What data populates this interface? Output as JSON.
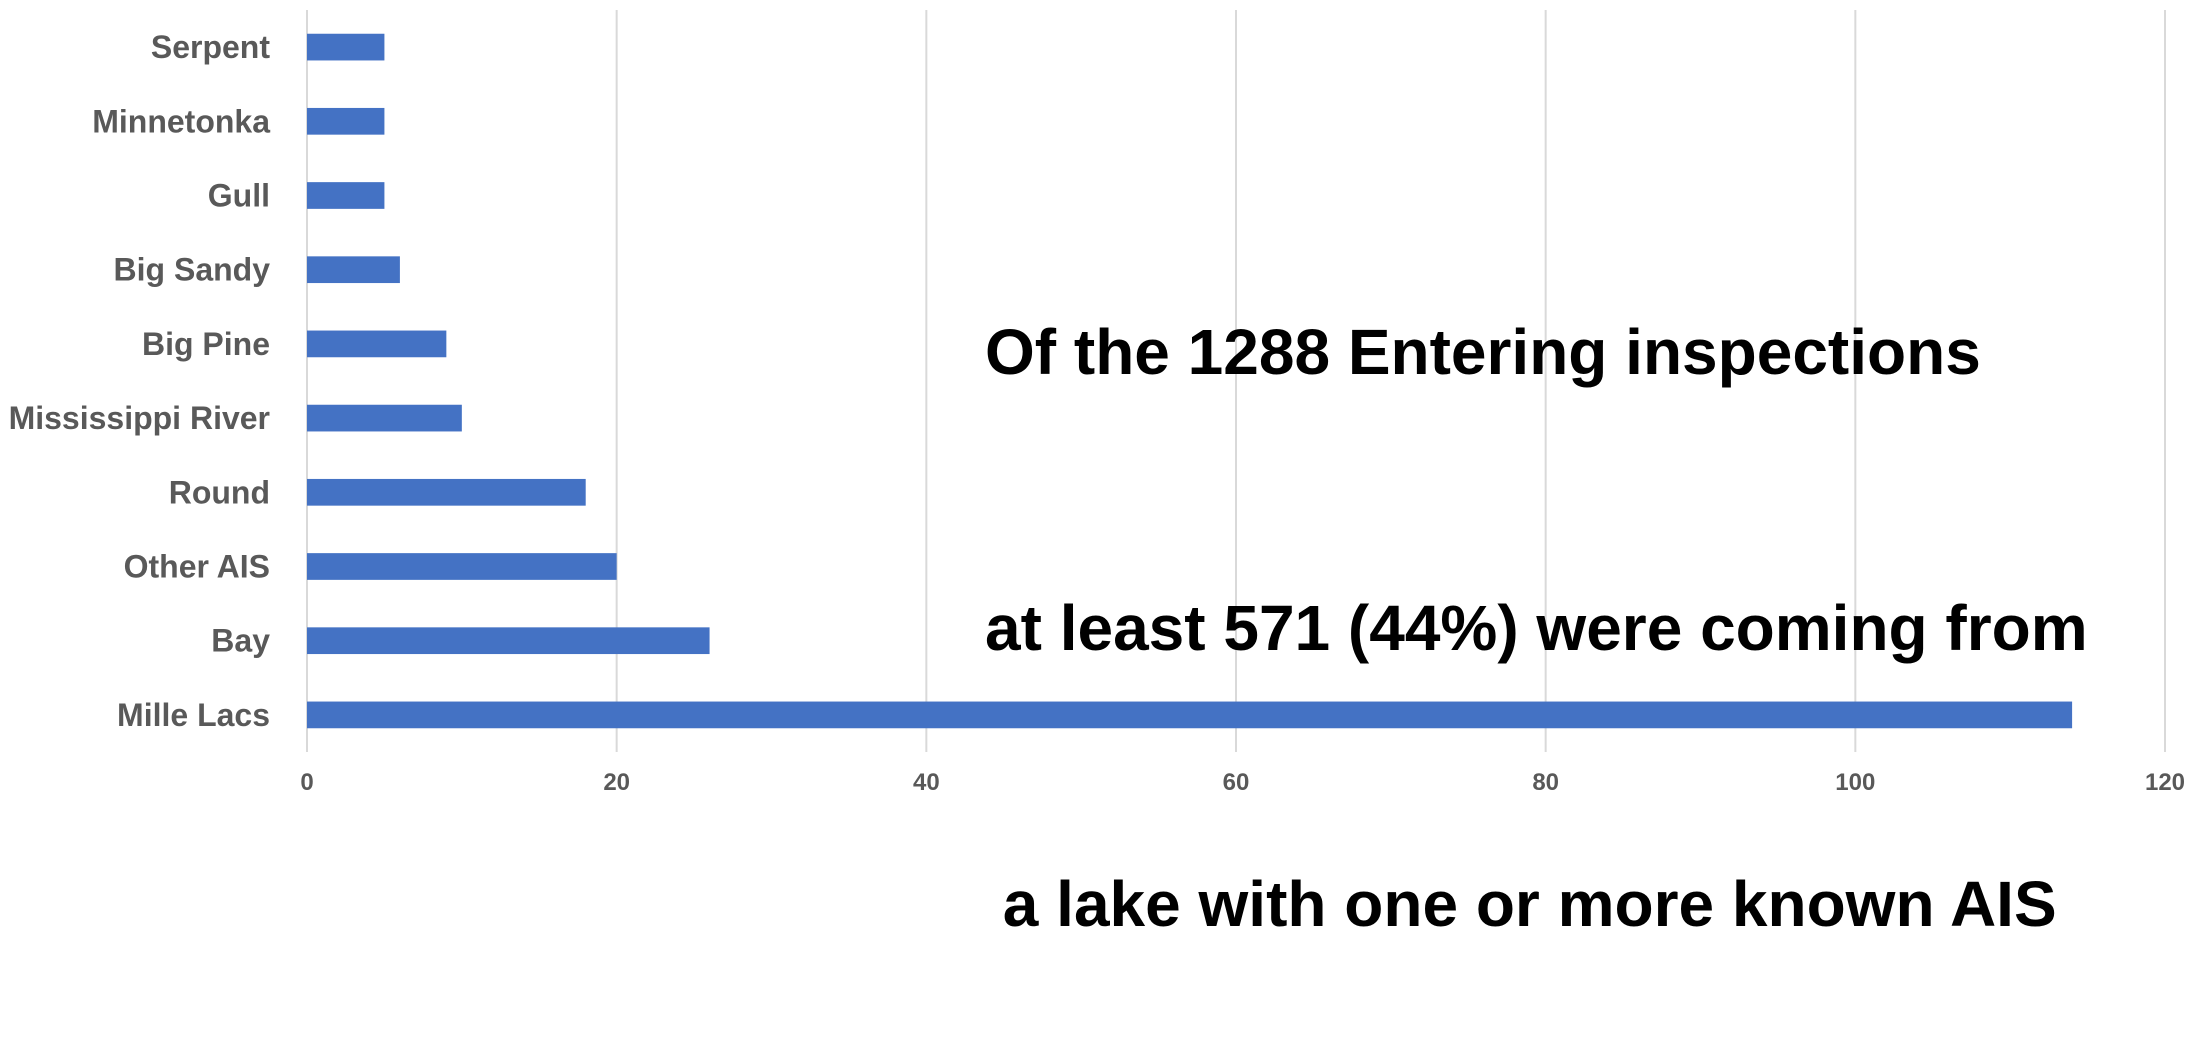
{
  "chart_data": {
    "type": "bar",
    "orientation": "horizontal",
    "categories": [
      "Mille Lacs",
      "Bay",
      "Other AIS",
      "Round",
      "Mississippi River",
      "Big Pine",
      "Big Sandy",
      "Gull",
      "Minnetonka",
      "Serpent"
    ],
    "values": [
      114,
      26,
      20,
      18,
      10,
      9,
      6,
      5,
      5,
      5
    ],
    "xlim": [
      0,
      120
    ],
    "xticks": [
      "0",
      "20",
      "40",
      "60",
      "80",
      "100",
      "120"
    ],
    "grid": true,
    "bar_color": "#4472c4",
    "annotation": {
      "lines": [
        "Of the 1288 Entering inspections",
        "at least 571 (44%) were coming from",
        " a lake with one or more known AIS"
      ]
    }
  }
}
